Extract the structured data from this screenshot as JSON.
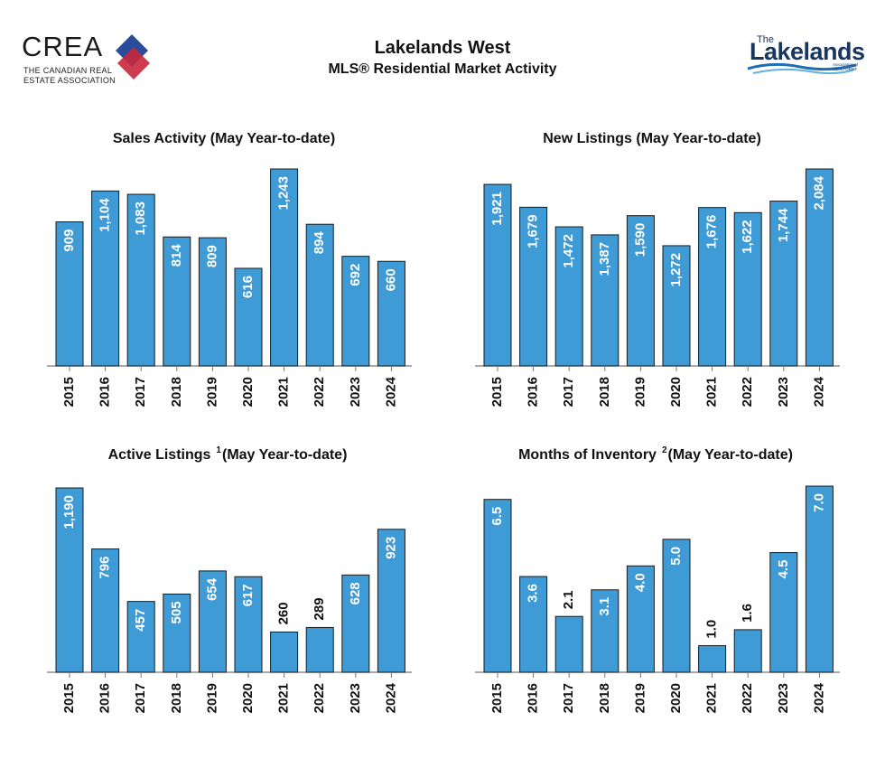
{
  "header": {
    "title": "Lakelands West",
    "subtitle": "MLS® Residential Market Activity",
    "crea_logo": {
      "word": "CREA",
      "sub_line1": "THE CANADIAN REAL",
      "sub_line2": "ESTATE ASSOCIATION",
      "colors": [
        "#2b4c9b",
        "#c8283c"
      ]
    },
    "lakelands_logo": {
      "the": "The",
      "word": "Lakelands",
      "tag_line1": "Association of",
      "tag_line2": "REALTORS®",
      "color": "#17375e"
    }
  },
  "bar_color": "#3f9bd6",
  "chart_data": [
    {
      "type": "bar",
      "title": "Sales Activity (May Year-to-date)",
      "categories": [
        "2015",
        "2016",
        "2017",
        "2018",
        "2019",
        "2020",
        "2021",
        "2022",
        "2023",
        "2024"
      ],
      "values": [
        909,
        1104,
        1083,
        814,
        809,
        616,
        1243,
        894,
        692,
        660
      ],
      "labels": [
        "909",
        "1,104",
        "1,083",
        "814",
        "809",
        "616",
        "1,243",
        "894",
        "692",
        "660"
      ],
      "ylim": [
        0,
        1243
      ]
    },
    {
      "type": "bar",
      "title": "New Listings (May Year-to-date)",
      "categories": [
        "2015",
        "2016",
        "2017",
        "2018",
        "2019",
        "2020",
        "2021",
        "2022",
        "2023",
        "2024"
      ],
      "values": [
        1921,
        1679,
        1472,
        1387,
        1590,
        1272,
        1676,
        1622,
        1744,
        2084
      ],
      "labels": [
        "1,921",
        "1,679",
        "1,472",
        "1,387",
        "1,590",
        "1,272",
        "1,676",
        "1,622",
        "1,744",
        "2,084"
      ],
      "ylim": [
        0,
        2084
      ]
    },
    {
      "type": "bar",
      "title": "Active Listings",
      "footnote": "1",
      "title_suffix": "(May Year-to-date)",
      "categories": [
        "2015",
        "2016",
        "2017",
        "2018",
        "2019",
        "2020",
        "2021",
        "2022",
        "2023",
        "2024"
      ],
      "values": [
        1190,
        796,
        457,
        505,
        654,
        617,
        260,
        289,
        628,
        923
      ],
      "labels": [
        "1,190",
        "796",
        "457",
        "505",
        "654",
        "617",
        "260",
        "289",
        "628",
        "923"
      ],
      "ylim": [
        0,
        1190
      ]
    },
    {
      "type": "bar",
      "title": "Months of Inventory",
      "footnote": "2",
      "title_suffix": "(May Year-to-date)",
      "categories": [
        "2015",
        "2016",
        "2017",
        "2018",
        "2019",
        "2020",
        "2021",
        "2022",
        "2023",
        "2024"
      ],
      "values": [
        6.5,
        3.6,
        2.1,
        3.1,
        4.0,
        5.0,
        1.0,
        1.6,
        4.5,
        7.0
      ],
      "labels": [
        "6.5",
        "3.6",
        "2.1",
        "3.1",
        "4.0",
        "5.0",
        "1.0",
        "1.6",
        "4.5",
        "7.0"
      ],
      "ylim": [
        0,
        7.0
      ]
    }
  ]
}
